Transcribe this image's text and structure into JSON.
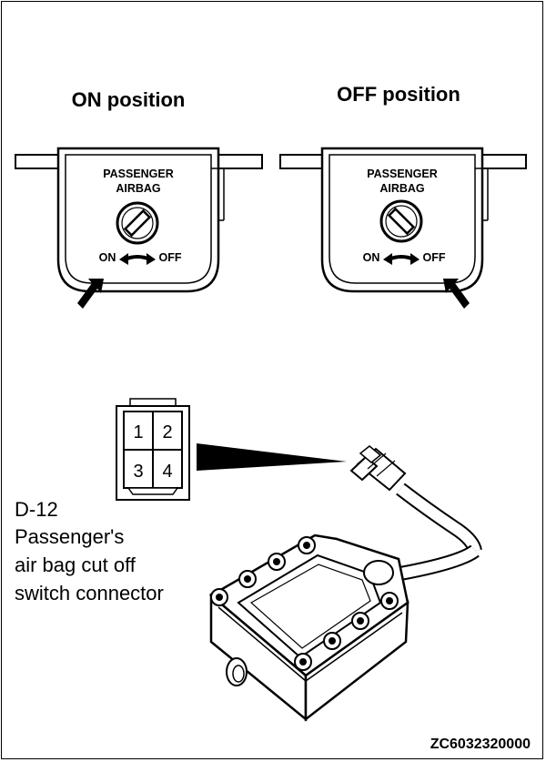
{
  "panels": {
    "on": {
      "heading": "ON position",
      "line1": "PASSENGER",
      "line2": "AIRBAG",
      "label_on": "ON",
      "label_off": "OFF"
    },
    "off": {
      "heading": "OFF position",
      "line1": "PASSENGER",
      "line2": "AIRBAG",
      "label_on": "ON",
      "label_off": "OFF"
    }
  },
  "connector": {
    "pins": [
      "1",
      "2",
      "3",
      "4"
    ],
    "caption_lines": [
      "D-12",
      "Passenger's",
      "air bag cut off",
      "switch connector"
    ]
  },
  "figure_code": "ZC6032320000"
}
